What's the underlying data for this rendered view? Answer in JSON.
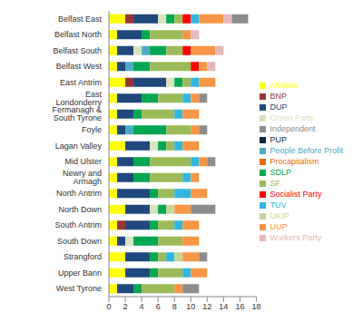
{
  "chart_data": {
    "type": "bar",
    "orientation": "horizontal",
    "stacked": true,
    "grid": false,
    "legend": "right",
    "categories": [
      "Belfast East",
      "Belfast North",
      "Belfast South",
      "Belfast West",
      "East Antrim",
      "East Londonderry",
      "Fermanagh & South Tyrone",
      "Foyle",
      "Lagan Valley",
      "Mid Ulster",
      "Newry and Armagh",
      "North Antrim",
      "North Down",
      "South Antrim",
      "South Down",
      "Strangford",
      "Upper Bann",
      "West Tyrone"
    ],
    "xlim": [
      0,
      18
    ],
    "xticks": [
      0,
      2,
      4,
      6,
      8,
      10,
      12,
      14,
      16,
      18
    ],
    "series": [
      {
        "name": "Alliance",
        "color": "#ffff00",
        "values": [
          2,
          1,
          1,
          1,
          2,
          1,
          1,
          1,
          2,
          1,
          1,
          1,
          2,
          1,
          1,
          2,
          2,
          1
        ]
      },
      {
        "name": "BNP",
        "color": "#953735",
        "values": [
          1,
          0,
          0,
          0,
          1,
          0,
          0,
          0,
          0,
          0,
          0,
          0,
          0,
          1,
          0,
          0,
          0,
          0
        ]
      },
      {
        "name": "DUP",
        "color": "#1f497d",
        "values": [
          3,
          3,
          2,
          1,
          4,
          3,
          2,
          1,
          3,
          2,
          2,
          4,
          3,
          3,
          1,
          3,
          3,
          2
        ]
      },
      {
        "name": "Green Party",
        "color": "#d7e4bd",
        "values": [
          1,
          0,
          1,
          0,
          1,
          0,
          0,
          0,
          1,
          0,
          0,
          0,
          1,
          0,
          1,
          0,
          0,
          0
        ]
      },
      {
        "name": "People Before Profit",
        "color": "#4bacc6",
        "values": [
          0,
          0,
          1,
          1,
          0,
          0,
          0,
          1,
          0,
          0,
          0,
          0,
          0,
          0,
          0,
          0,
          0,
          0
        ]
      },
      {
        "name": "Procapitalism",
        "color": "#e46c0a",
        "values": [
          0,
          0,
          0,
          0,
          0,
          0,
          0,
          0,
          0,
          0,
          0,
          0,
          0,
          0,
          0,
          0,
          0,
          0
        ]
      },
      {
        "name": "PUP",
        "color": "#10253f",
        "values": [
          0,
          0,
          0,
          0,
          0,
          0,
          0,
          0,
          0,
          0,
          0,
          0,
          0,
          0,
          0,
          0,
          0,
          0
        ]
      },
      {
        "name": "SDLP",
        "color": "#00a650",
        "values": [
          1,
          1,
          2,
          2,
          1,
          2,
          1,
          4,
          1,
          2,
          2,
          1,
          1,
          1,
          3,
          1,
          1,
          1
        ]
      },
      {
        "name": "SF",
        "color": "#9bbb59",
        "values": [
          1,
          4,
          2,
          5,
          1,
          3,
          4,
          3,
          1,
          5,
          4,
          2,
          0,
          2,
          3,
          1,
          3,
          4
        ]
      },
      {
        "name": "Socialist Party",
        "color": "#ff0000",
        "values": [
          1,
          0,
          1,
          1,
          0,
          0,
          0,
          0,
          0,
          0,
          0,
          0,
          0,
          0,
          0,
          0,
          0,
          0
        ]
      },
      {
        "name": "TUV",
        "color": "#31b6e0",
        "values": [
          1,
          0,
          0,
          0,
          1,
          1,
          1,
          0,
          1,
          1,
          1,
          2,
          0,
          1,
          0,
          1,
          1,
          0
        ]
      },
      {
        "name": "UKIP",
        "color": "#c3d69b",
        "values": [
          0,
          0,
          0,
          0,
          0,
          0,
          0,
          0,
          0,
          0,
          0,
          0,
          1,
          0,
          0,
          1,
          0,
          0
        ]
      },
      {
        "name": "UUP",
        "color": "#f79646",
        "values": [
          3,
          1,
          3,
          1,
          2,
          1,
          2,
          1,
          2,
          1,
          1,
          2,
          2,
          2,
          2,
          2,
          2,
          1
        ]
      },
      {
        "name": "Workers Party",
        "color": "#e6b9b8",
        "values": [
          1,
          1,
          1,
          1,
          0,
          0,
          0,
          0,
          0,
          0,
          0,
          0,
          0,
          0,
          0,
          0,
          0,
          0
        ]
      },
      {
        "name": "Independent",
        "color": "#8c8c8c",
        "values": [
          2,
          0,
          0,
          0,
          0,
          1,
          0,
          1,
          0,
          1,
          0,
          0,
          3,
          0,
          0,
          1,
          0,
          2
        ]
      }
    ]
  }
}
